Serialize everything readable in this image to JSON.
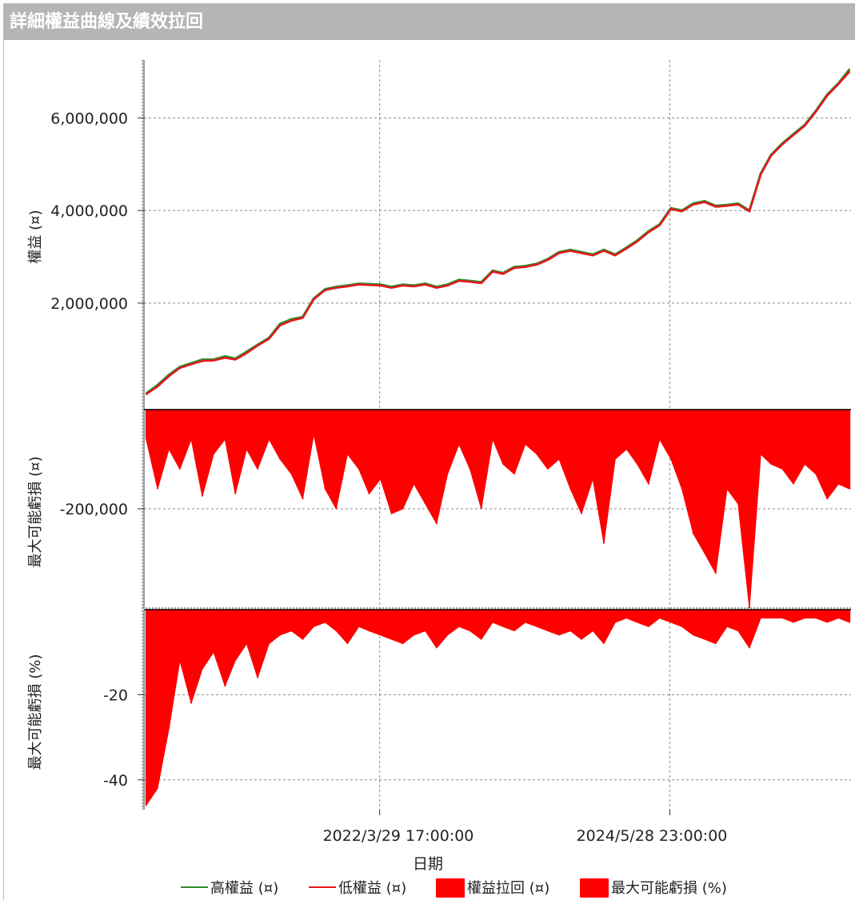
{
  "window": {
    "title": "詳細權益曲線及績效拉回"
  },
  "colors": {
    "high_equity": "#2e8b2e",
    "low_equity": "#e8161b",
    "fill": "#ff0000",
    "grid": "#888888",
    "titlebar": "#b5b5b5"
  },
  "chart_data": [
    {
      "type": "line",
      "panel": "equity",
      "ylabel": "權益 (¤)",
      "xlabel": "日期",
      "ylim": [
        -300000,
        7250000
      ],
      "yticks": [
        2000000,
        4000000,
        6000000
      ],
      "ytick_labels": [
        "2,000,000",
        "4,000,000",
        "6,000,000"
      ],
      "xticks": [
        "2022/3/29 17:00:00",
        "2024/5/28 23:00:00"
      ],
      "grid": true,
      "x": [
        "2020/7/1",
        "2020/8/1",
        "2020/9/1",
        "2020/10/1",
        "2020/11/1",
        "2020/12/1",
        "2021/1/1",
        "2021/2/1",
        "2021/3/1",
        "2021/4/1",
        "2021/5/1",
        "2021/6/1",
        "2021/7/1",
        "2021/8/1",
        "2021/9/1",
        "2021/10/1",
        "2021/11/1",
        "2021/12/1",
        "2022/1/1",
        "2022/2/1",
        "2022/3/1",
        "2022/4/1",
        "2022/5/1",
        "2022/6/1",
        "2022/7/1",
        "2022/8/1",
        "2022/9/1",
        "2022/10/1",
        "2022/11/1",
        "2022/12/1",
        "2023/1/1",
        "2023/2/1",
        "2023/3/1",
        "2023/4/1",
        "2023/5/1",
        "2023/6/1",
        "2023/7/1",
        "2023/8/1",
        "2023/9/1",
        "2023/10/1",
        "2023/11/1",
        "2023/12/1",
        "2024/1/1",
        "2024/2/1",
        "2024/3/1",
        "2024/4/1",
        "2024/5/1",
        "2024/6/1",
        "2024/7/1",
        "2024/8/1",
        "2024/9/1",
        "2024/10/1",
        "2024/11/1",
        "2024/12/1",
        "2025/1/1",
        "2025/2/1",
        "2025/3/1",
        "2025/4/1",
        "2025/5/1",
        "2025/6/1",
        "2025/7/1",
        "2025/8/1",
        "2025/9/1",
        "2025/10/1"
      ],
      "series": [
        {
          "name": "高權益 (¤)",
          "values": [
            50000,
            230000,
            450000,
            620000,
            700000,
            780000,
            780000,
            850000,
            800000,
            950000,
            1100000,
            1250000,
            1550000,
            1650000,
            1700000,
            2100000,
            2300000,
            2350000,
            2380000,
            2420000,
            2410000,
            2400000,
            2350000,
            2400000,
            2380000,
            2420000,
            2350000,
            2400000,
            2500000,
            2480000,
            2450000,
            2700000,
            2650000,
            2780000,
            2800000,
            2850000,
            2950000,
            3100000,
            3150000,
            3100000,
            3050000,
            3150000,
            3050000,
            3200000,
            3350000,
            3550000,
            3700000,
            4050000,
            4000000,
            4150000,
            4200000,
            4100000,
            4120000,
            4150000,
            4000000,
            4800000,
            5200000,
            5450000,
            5650000,
            5850000,
            6150000,
            6500000,
            6750000,
            7050000
          ]
        },
        {
          "name": "低權益 (¤)",
          "values": [
            30000,
            200000,
            420000,
            600000,
            680000,
            750000,
            760000,
            820000,
            780000,
            920000,
            1080000,
            1230000,
            1520000,
            1620000,
            1680000,
            2080000,
            2280000,
            2330000,
            2360000,
            2400000,
            2390000,
            2380000,
            2330000,
            2380000,
            2360000,
            2400000,
            2330000,
            2380000,
            2480000,
            2460000,
            2430000,
            2680000,
            2630000,
            2760000,
            2780000,
            2830000,
            2930000,
            3080000,
            3130000,
            3080000,
            3030000,
            3130000,
            3030000,
            3180000,
            3330000,
            3530000,
            3680000,
            4030000,
            3980000,
            4130000,
            4180000,
            4080000,
            4100000,
            4130000,
            3980000,
            4780000,
            5180000,
            5430000,
            5630000,
            5830000,
            6130000,
            6480000,
            6730000,
            7000000
          ]
        }
      ]
    },
    {
      "type": "area",
      "panel": "drawdown",
      "ylabel": "最大可能虧損 (¤)",
      "ylim": [
        -400000,
        0
      ],
      "yticks": [
        -200000
      ],
      "ytick_labels": [
        "-200,000"
      ],
      "grid": true,
      "x": [
        "2020/7/1",
        "2020/8/1",
        "2020/9/1",
        "2020/10/1",
        "2020/11/1",
        "2020/12/1",
        "2021/1/1",
        "2021/2/1",
        "2021/3/1",
        "2021/4/1",
        "2021/5/1",
        "2021/6/1",
        "2021/7/1",
        "2021/8/1",
        "2021/9/1",
        "2021/10/1",
        "2021/11/1",
        "2021/12/1",
        "2022/1/1",
        "2022/2/1",
        "2022/3/1",
        "2022/4/1",
        "2022/5/1",
        "2022/6/1",
        "2022/7/1",
        "2022/8/1",
        "2022/9/1",
        "2022/10/1",
        "2022/11/1",
        "2022/12/1",
        "2023/1/1",
        "2023/2/1",
        "2023/3/1",
        "2023/4/1",
        "2023/5/1",
        "2023/6/1",
        "2023/7/1",
        "2023/8/1",
        "2023/9/1",
        "2023/10/1",
        "2023/11/1",
        "2023/12/1",
        "2024/1/1",
        "2024/2/1",
        "2024/3/1",
        "2024/4/1",
        "2024/5/1",
        "2024/6/1",
        "2024/7/1",
        "2024/8/1",
        "2024/9/1",
        "2024/10/1",
        "2024/11/1",
        "2024/12/1",
        "2025/1/1",
        "2025/2/1",
        "2025/3/1",
        "2025/4/1",
        "2025/5/1",
        "2025/6/1",
        "2025/7/1",
        "2025/8/1",
        "2025/9/1",
        "2025/10/1"
      ],
      "series": [
        {
          "name": "權益拉回 (¤)",
          "values": [
            -60000,
            -160000,
            -80000,
            -120000,
            -60000,
            -175000,
            -90000,
            -60000,
            -170000,
            -80000,
            -120000,
            -60000,
            -100000,
            -130000,
            -180000,
            -50000,
            -160000,
            -200000,
            -90000,
            -120000,
            -170000,
            -140000,
            -210000,
            -200000,
            -150000,
            -190000,
            -230000,
            -130000,
            -70000,
            -120000,
            -200000,
            -60000,
            -110000,
            -130000,
            -70000,
            -90000,
            -120000,
            -100000,
            -160000,
            -210000,
            -140000,
            -270000,
            -100000,
            -80000,
            -110000,
            -150000,
            -60000,
            -100000,
            -160000,
            -250000,
            -290000,
            -330000,
            -160000,
            -190000,
            -400000,
            -90000,
            -110000,
            -120000,
            -150000,
            -110000,
            -130000,
            -180000,
            -150000,
            -160000
          ]
        }
      ]
    },
    {
      "type": "area",
      "panel": "drawdown_pct",
      "ylabel": "最大可能虧損 (%)",
      "ylim": [
        -47,
        0
      ],
      "yticks": [
        -20,
        -40
      ],
      "ytick_labels": [
        "-20",
        "-40"
      ],
      "grid": true,
      "x": [
        "2020/7/1",
        "2020/8/1",
        "2020/9/1",
        "2020/10/1",
        "2020/11/1",
        "2020/12/1",
        "2021/1/1",
        "2021/2/1",
        "2021/3/1",
        "2021/4/1",
        "2021/5/1",
        "2021/6/1",
        "2021/7/1",
        "2021/8/1",
        "2021/9/1",
        "2021/10/1",
        "2021/11/1",
        "2021/12/1",
        "2022/1/1",
        "2022/2/1",
        "2022/3/1",
        "2022/4/1",
        "2022/5/1",
        "2022/6/1",
        "2022/7/1",
        "2022/8/1",
        "2022/9/1",
        "2022/10/1",
        "2022/11/1",
        "2022/12/1",
        "2023/1/1",
        "2023/2/1",
        "2023/3/1",
        "2023/4/1",
        "2023/5/1",
        "2023/6/1",
        "2023/7/1",
        "2023/8/1",
        "2023/9/1",
        "2023/10/1",
        "2023/11/1",
        "2023/12/1",
        "2024/1/1",
        "2024/2/1",
        "2024/3/1",
        "2024/4/1",
        "2024/5/1",
        "2024/6/1",
        "2024/7/1",
        "2024/8/1",
        "2024/9/1",
        "2024/10/1",
        "2024/11/1",
        "2024/12/1",
        "2025/1/1",
        "2025/2/1",
        "2025/3/1",
        "2025/4/1",
        "2025/5/1",
        "2025/6/1",
        "2025/7/1",
        "2025/8/1",
        "2025/9/1",
        "2025/10/1"
      ],
      "series": [
        {
          "name": "最大可能虧損 (%)",
          "values": [
            -46,
            -42,
            -28,
            -12,
            -22,
            -14,
            -10,
            -18,
            -12,
            -8,
            -16,
            -8,
            -6,
            -5,
            -7,
            -4,
            -3,
            -5,
            -8,
            -4,
            -5,
            -6,
            -7,
            -8,
            -6,
            -5,
            -9,
            -6,
            -4,
            -5,
            -7,
            -3,
            -4,
            -5,
            -3,
            -4,
            -5,
            -6,
            -5,
            -7,
            -5,
            -8,
            -3,
            -2,
            -3,
            -4,
            -2,
            -3,
            -4,
            -6,
            -7,
            -8,
            -4,
            -5,
            -9,
            -2,
            -2,
            -2,
            -3,
            -2,
            -2,
            -3,
            -2,
            -3
          ]
        }
      ]
    }
  ],
  "legend": {
    "items": [
      {
        "label": "高權益 (¤)",
        "swatch": "line",
        "color": "#2e8b2e"
      },
      {
        "label": "低權益 (¤)",
        "swatch": "line",
        "color": "#e8161b"
      },
      {
        "label": "權益拉回 (¤)",
        "swatch": "box",
        "color": "#ff0000"
      },
      {
        "label": "最大可能虧損 (%)",
        "swatch": "box",
        "color": "#ff0000"
      }
    ]
  }
}
